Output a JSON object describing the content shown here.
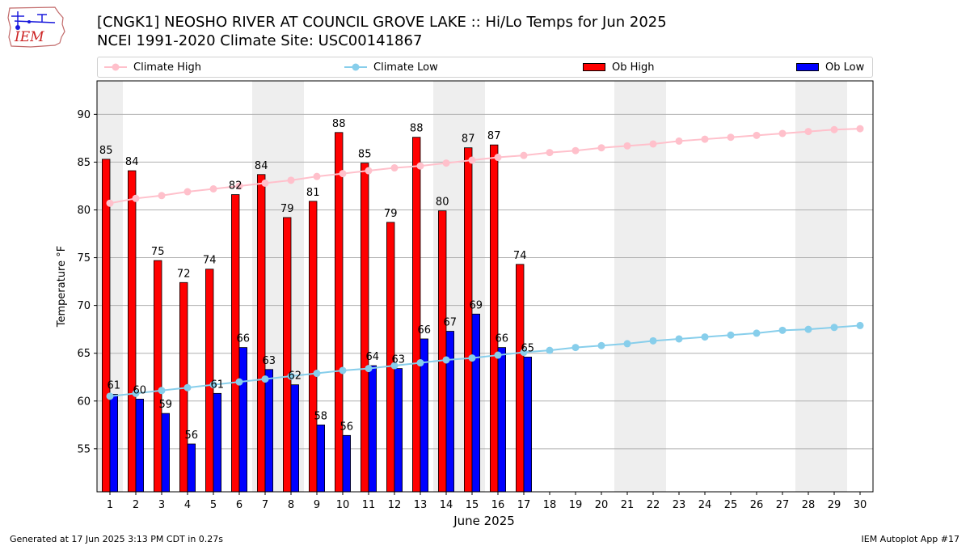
{
  "title": {
    "line1": "[CNGK1] NEOSHO RIVER  AT COUNCIL GROVE LAKE :: Hi/Lo Temps for Jun 2025",
    "line2": "NCEI 1991-2020 Climate Site: USC00141867"
  },
  "logo": {
    "text": "IEM"
  },
  "legend": {
    "climate_high": "Climate High",
    "climate_low": "Climate Low",
    "ob_high": "Ob High",
    "ob_low": "Ob Low"
  },
  "footer": {
    "left": "Generated at 17 Jun 2025 3:13 PM CDT in 0.27s",
    "right": "IEM Autoplot App #17"
  },
  "colors": {
    "ob_high": "#ff0000",
    "ob_low": "#0000ff",
    "climate_high": "#ffc0cb",
    "climate_low": "#87ceeb",
    "weekend_shade": "#eeeeee",
    "grid": "#b0b0b0"
  },
  "chart_data": {
    "type": "bar",
    "xlabel": "June 2025",
    "ylabel": "Temperature °F",
    "xlim": [
      0.5,
      30.5
    ],
    "ylim": [
      50.5,
      93.5
    ],
    "yticks": [
      55,
      60,
      65,
      70,
      75,
      80,
      85,
      90
    ],
    "grid": "horizontal",
    "legend_position": "top",
    "days": [
      1,
      2,
      3,
      4,
      5,
      6,
      7,
      8,
      9,
      10,
      11,
      12,
      13,
      14,
      15,
      16,
      17,
      18,
      19,
      20,
      21,
      22,
      23,
      24,
      25,
      26,
      27,
      28,
      29,
      30
    ],
    "weekend_shading": [
      [
        1,
        1
      ],
      [
        7,
        8
      ],
      [
        14,
        15
      ],
      [
        21,
        22
      ],
      [
        28,
        29
      ]
    ],
    "series": [
      {
        "name": "Ob High",
        "kind": "bar",
        "values": [
          85.3,
          84.1,
          74.7,
          72.4,
          73.8,
          81.6,
          83.7,
          79.2,
          80.9,
          88.1,
          84.9,
          78.7,
          87.6,
          79.9,
          86.5,
          86.8,
          74.3
        ],
        "labels": [
          "85",
          "84",
          "75",
          "72",
          "74",
          "82",
          "84",
          "79",
          "81",
          "88",
          "85",
          "79",
          "88",
          "80",
          "87",
          "87",
          "74"
        ]
      },
      {
        "name": "Ob Low",
        "kind": "bar",
        "values": [
          60.7,
          60.2,
          58.7,
          55.5,
          60.8,
          65.6,
          63.3,
          61.7,
          57.5,
          56.4,
          63.7,
          63.4,
          66.5,
          67.3,
          69.1,
          65.6,
          64.6
        ],
        "labels": [
          "61",
          "60",
          "59",
          "56",
          "61",
          "66",
          "63",
          "62",
          "58",
          "56",
          "64",
          "63",
          "66",
          "67",
          "69",
          "66",
          "65"
        ]
      },
      {
        "name": "Climate High",
        "kind": "line",
        "values": [
          80.7,
          81.2,
          81.5,
          81.9,
          82.2,
          82.5,
          82.8,
          83.1,
          83.5,
          83.8,
          84.1,
          84.4,
          84.6,
          84.9,
          85.2,
          85.5,
          85.7,
          86.0,
          86.2,
          86.5,
          86.7,
          86.9,
          87.2,
          87.4,
          87.6,
          87.8,
          88.0,
          88.2,
          88.4,
          88.5
        ]
      },
      {
        "name": "Climate Low",
        "kind": "line",
        "values": [
          60.5,
          60.8,
          61.1,
          61.4,
          61.7,
          62.0,
          62.3,
          62.6,
          62.9,
          63.2,
          63.4,
          63.7,
          64.0,
          64.3,
          64.5,
          64.8,
          65.1,
          65.3,
          65.6,
          65.8,
          66.0,
          66.3,
          66.5,
          66.7,
          66.9,
          67.1,
          67.4,
          67.5,
          67.7,
          67.9
        ]
      }
    ]
  }
}
